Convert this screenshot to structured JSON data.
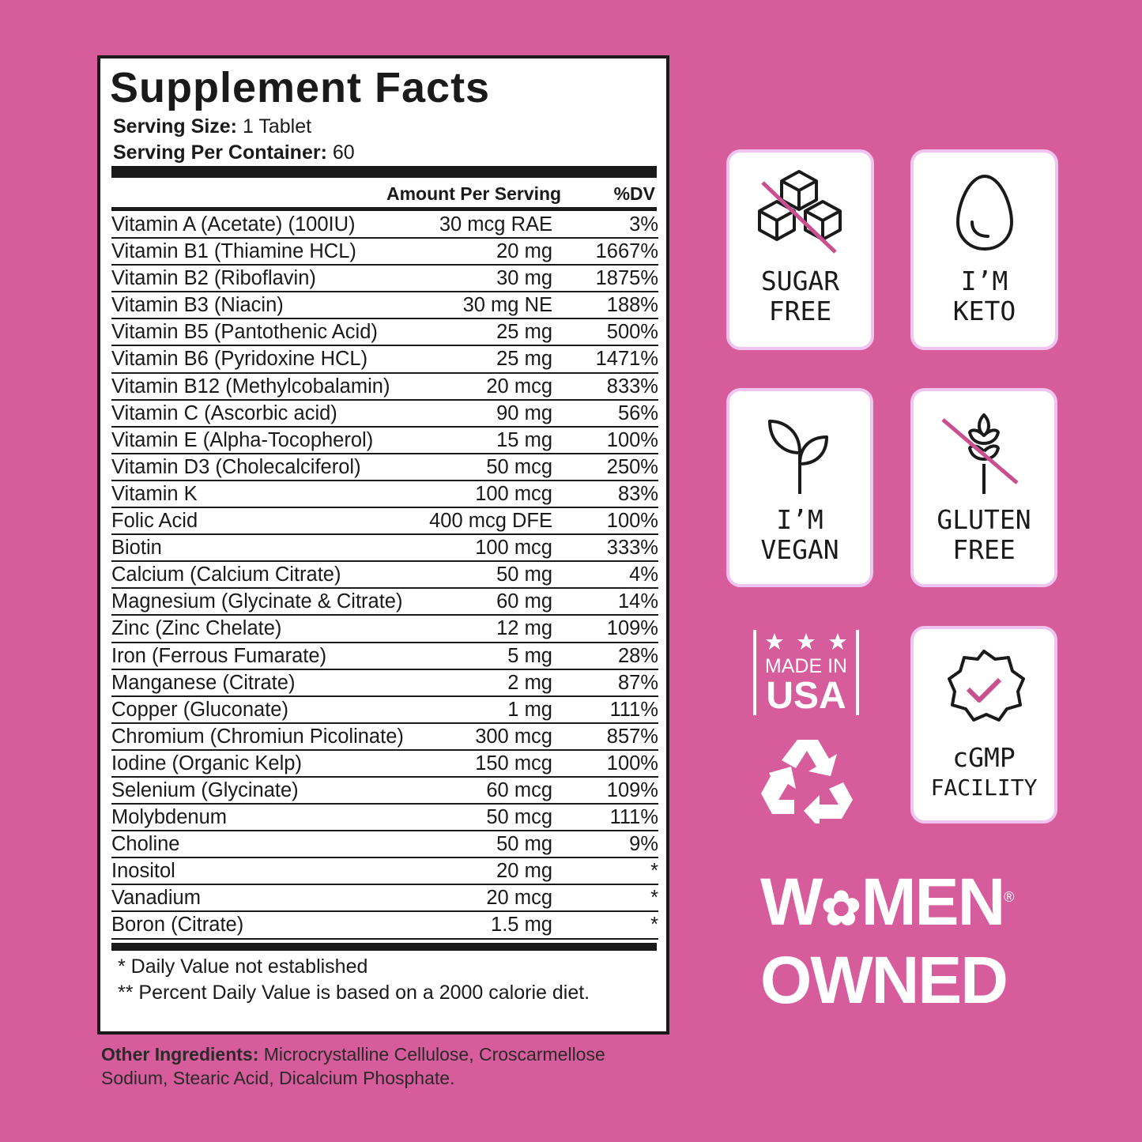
{
  "panel": {
    "title": "Supplement Facts",
    "serving_size_label": "Serving Size:",
    "serving_size": "1 Tablet",
    "servings_label": "Serving Per Container:",
    "servings": "60",
    "col_amount": "Amount Per Serving",
    "col_dv": "%DV",
    "rows": [
      [
        "Vitamin A (Acetate) (100IU)",
        "30 mcg RAE",
        "3%"
      ],
      [
        "Vitamin B1 (Thiamine HCL)",
        "20 mg",
        "1667%"
      ],
      [
        "Vitamin B2 (Riboflavin)",
        "30 mg",
        "1875%"
      ],
      [
        "Vitamin B3 (Niacin)",
        "30 mg NE",
        "188%"
      ],
      [
        "Vitamin B5 (Pantothenic Acid)",
        "25 mg",
        "500%"
      ],
      [
        "Vitamin B6 (Pyridoxine HCL)",
        "25 mg",
        "1471%"
      ],
      [
        "Vitamin B12 (Methylcobalamin)",
        "20 mcg",
        "833%"
      ],
      [
        "Vitamin C (Ascorbic acid)",
        "90 mg",
        "56%"
      ],
      [
        "Vitamin E (Alpha-Tocopherol)",
        "15 mg",
        "100%"
      ],
      [
        "Vitamin D3 (Cholecalciferol)",
        "50 mcg",
        "250%"
      ],
      [
        "Vitamin K",
        "100 mcg",
        "83%"
      ],
      [
        "Folic Acid",
        "400 mcg DFE",
        "100%"
      ],
      [
        "Biotin",
        "100 mcg",
        "333%"
      ],
      [
        "Calcium (Calcium Citrate)",
        "50 mg",
        "4%"
      ],
      [
        "Magnesium (Glycinate & Citrate)",
        "60 mg",
        "14%"
      ],
      [
        "Zinc (Zinc Chelate)",
        "12 mg",
        "109%"
      ],
      [
        "Iron (Ferrous Fumarate)",
        "5 mg",
        "28%"
      ],
      [
        "Manganese (Citrate)",
        "2 mg",
        "87%"
      ],
      [
        "Copper (Gluconate)",
        "1 mg",
        "111%"
      ],
      [
        "Chromium (Chromiun Picolinate)",
        "300 mcg",
        "857%"
      ],
      [
        "Iodine (Organic Kelp)",
        "150 mcg",
        "100%"
      ],
      [
        "Selenium (Glycinate)",
        "60 mcg",
        "109%"
      ],
      [
        "Molybdenum",
        "50 mcg",
        "111%"
      ],
      [
        "Choline",
        "50 mg",
        "9%"
      ],
      [
        "Inositol",
        "20 mg",
        "*"
      ],
      [
        "Vanadium",
        "20 mcg",
        "*"
      ],
      [
        "Boron (Citrate)",
        "1.5 mg",
        "*"
      ]
    ],
    "footnote1": "* Daily Value not established",
    "footnote2": "** Percent Daily Value is based on a 2000 calorie diet."
  },
  "other_ingredients": {
    "label": "Other Ingredients:",
    "text": " Microcrystalline Cellulose, Croscarmellose Sodium, Stearic Acid, Dicalcium Phosphate."
  },
  "badges": {
    "sugar": [
      "SUGAR",
      "FREE"
    ],
    "keto": [
      "I’M",
      "KETO"
    ],
    "vegan": [
      "I’M",
      "VEGAN"
    ],
    "gluten": [
      "GLUTEN",
      "FREE"
    ],
    "cgmp": [
      "cGMP",
      "FACILITY"
    ],
    "usa_top": "MADE IN",
    "usa": "USA",
    "women1": "W",
    "women2": "MEN",
    "women3": "OWNED",
    "registered": "®"
  },
  "colors": {
    "background": "#d65c9b",
    "accent": "#c8508f",
    "card_border": "#efc4f0"
  }
}
